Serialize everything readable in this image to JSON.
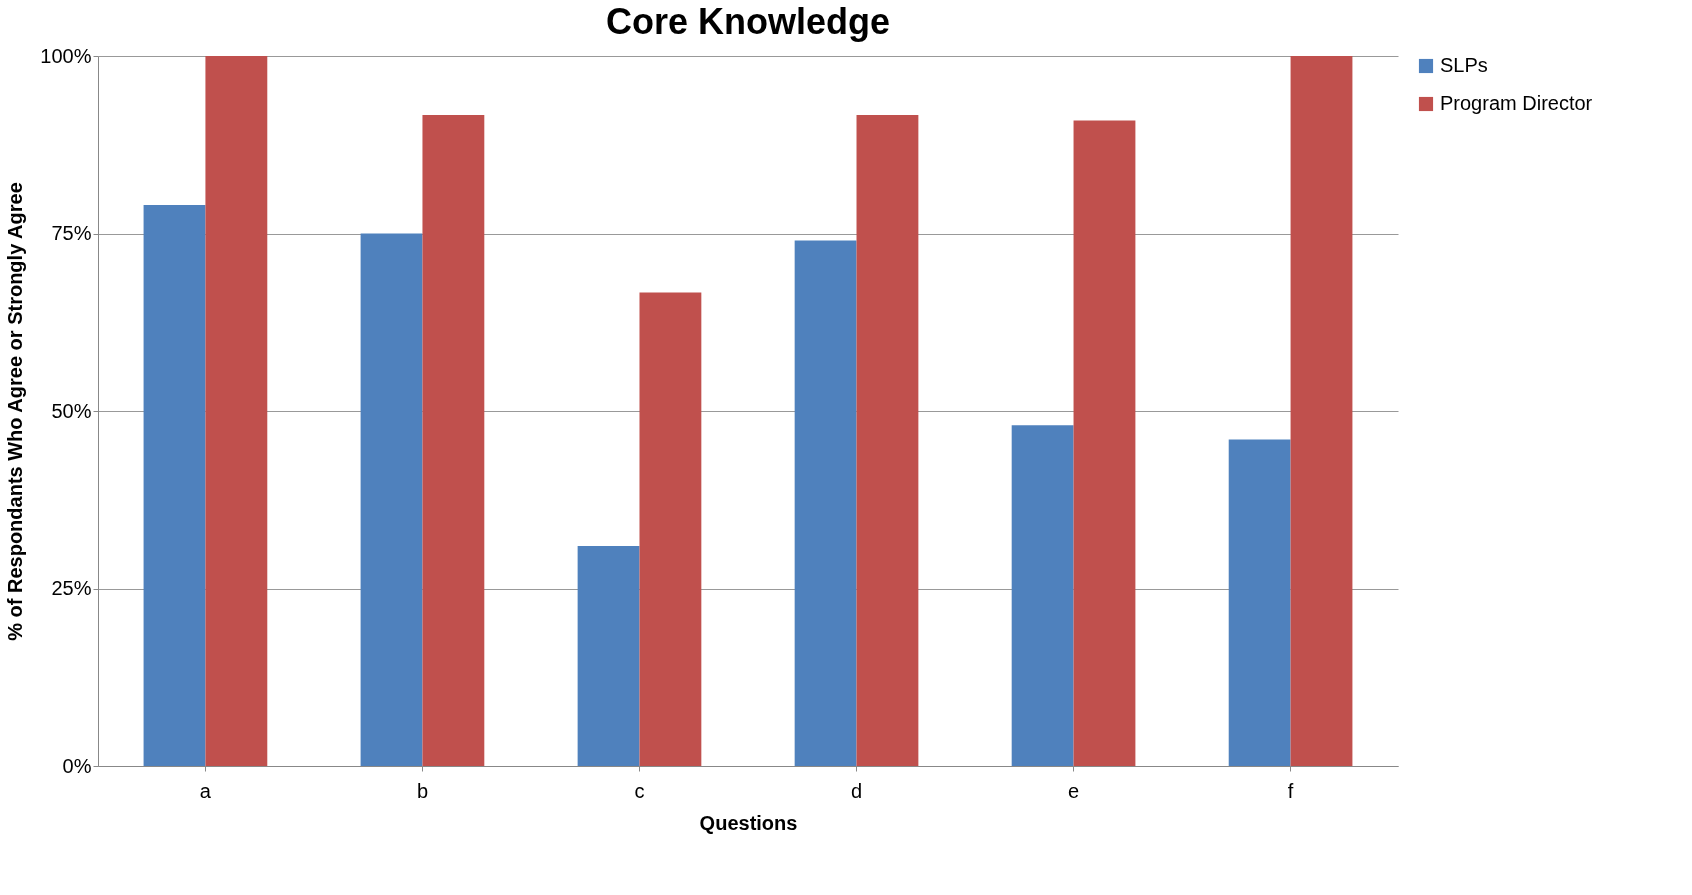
{
  "chart_data": {
    "type": "bar",
    "title": "Core Knowledge",
    "xlabel": "Questions",
    "ylabel": "% of Respondants Who Agree or Strongly Agree",
    "categories": [
      "a",
      "b",
      "c",
      "d",
      "e",
      "f"
    ],
    "series": [
      {
        "name": "SLPs",
        "color": "#4f81bd",
        "values": [
          79,
          75,
          31,
          74,
          48,
          46
        ]
      },
      {
        "name": "Program Director",
        "color": "#c0504d",
        "values": [
          100,
          91.7,
          66.7,
          91.7,
          90.9,
          100
        ]
      }
    ],
    "ylim": [
      0,
      100
    ],
    "yticks": [
      {
        "value": 0,
        "label": "0%"
      },
      {
        "value": 25,
        "label": "25%"
      },
      {
        "value": 50,
        "label": "50%"
      },
      {
        "value": 75,
        "label": "75%"
      },
      {
        "value": 100,
        "label": "100%"
      }
    ],
    "grid": "y",
    "legend": "right"
  }
}
